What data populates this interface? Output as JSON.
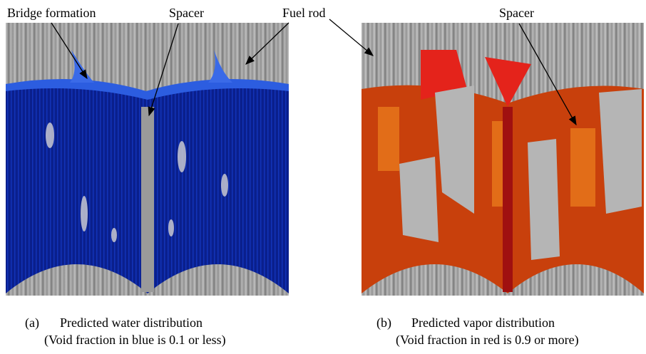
{
  "labels": {
    "bridge_formation": "Bridge formation",
    "spacer_left": "Spacer",
    "fuel_rod": "Fuel rod",
    "spacer_right": "Spacer"
  },
  "panels": [
    {
      "letter": "(a)",
      "caption": "Predicted water distribution",
      "note": "(Void fraction in blue is 0.1 or less)"
    },
    {
      "letter": "(b)",
      "caption": "Predicted vapor distribution",
      "note": "(Void fraction in red is 0.9 or more)"
    }
  ]
}
